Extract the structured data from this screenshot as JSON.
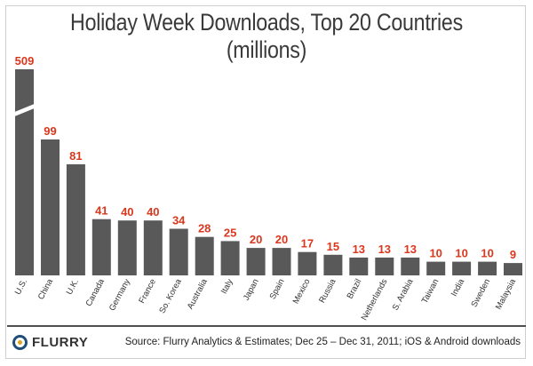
{
  "header": {
    "title": "Holiday Week Downloads, Top 20 Countries (millions)"
  },
  "footer": {
    "logo_text": "FLURRY",
    "source": "Source: Flurry Analytics & Estimates; Dec 25 – Dec 31, 2011; iOS & Android downloads"
  },
  "colors": {
    "bar": "#595959",
    "value_label": "#d9381e",
    "logo_ring": "#1f4e79",
    "logo_dot": "#e2a323"
  },
  "chart_data": {
    "type": "bar",
    "title": "Holiday Week Downloads, Top 20 Countries (millions)",
    "xlabel": "",
    "ylabel": "",
    "axis_break": true,
    "ylim": [
      0,
      110
    ],
    "categories": [
      "U.S.",
      "China",
      "U.K.",
      "Canada",
      "Germany",
      "France",
      "So. Korea",
      "Australia",
      "Italy",
      "Japan",
      "Spain",
      "Mexico",
      "Russia",
      "Brazil",
      "Netherlands",
      "S. Arabia",
      "Taiwan",
      "India",
      "Sweden",
      "Malaysia"
    ],
    "values": [
      509,
      99,
      81,
      41,
      40,
      40,
      34,
      28,
      25,
      20,
      20,
      17,
      15,
      13,
      13,
      13,
      10,
      10,
      10,
      9
    ],
    "labels": [
      "509",
      "99",
      "81",
      "41",
      "40",
      "40",
      "34",
      "28",
      "25",
      "20",
      "20",
      "17",
      "15",
      "13",
      "13",
      "13",
      "10",
      "10",
      "10",
      "9"
    ]
  }
}
